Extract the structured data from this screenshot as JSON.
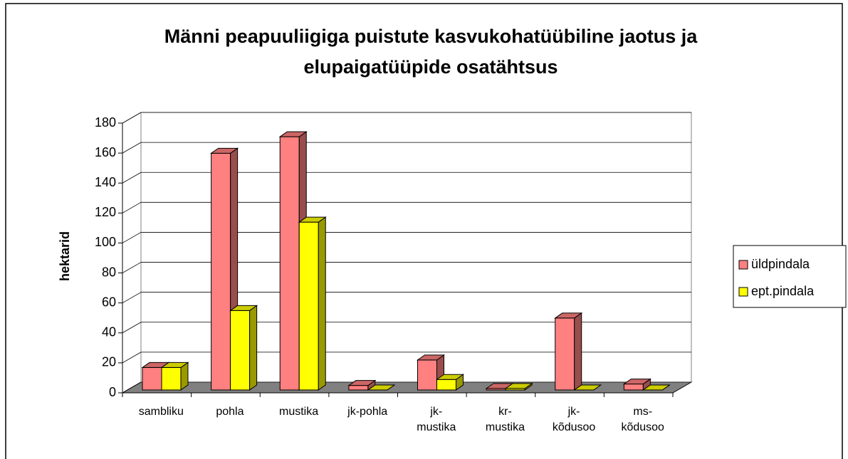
{
  "chart_data": {
    "type": "bar3d",
    "title": "Männi peapuuliigiga puistute kasvukohatüübiline jaotus ja elupaigatüüpide osatähtsus",
    "ylabel": "hektarid",
    "categories": [
      "sambliku",
      "pohla",
      "mustika",
      "jk-pohla",
      "jk-mustika",
      "kr-mustika",
      "jk-kõdusoo",
      "ms-kõdusoo"
    ],
    "series": [
      {
        "name": "üldpindala",
        "color": "#FF8080",
        "values": [
          15,
          158,
          169,
          3,
          20,
          1,
          48,
          4
        ]
      },
      {
        "name": "ept.pindala",
        "color": "#FFFF00",
        "values": [
          15,
          53,
          112,
          0,
          7,
          1,
          0,
          0
        ]
      }
    ],
    "ylim": [
      0,
      180
    ],
    "yticks": [
      0,
      20,
      40,
      60,
      80,
      100,
      120,
      140,
      160,
      180
    ],
    "grid": true,
    "legend": "right"
  }
}
